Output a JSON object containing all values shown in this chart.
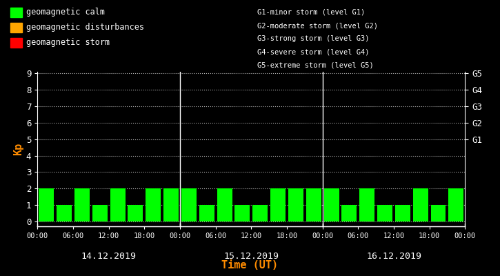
{
  "bg_color": "#000000",
  "bar_color": "#00ff00",
  "text_color": "#ffffff",
  "axis_color": "#ffffff",
  "kp_label_color": "#ff8c00",
  "xlabel_color": "#ff8c00",
  "legend_colors": {
    "calm": "#00ff00",
    "disturbances": "#ffa500",
    "storm": "#ff0000"
  },
  "legend_labels": [
    "geomagnetic calm",
    "geomagnetic disturbances",
    "geomagnetic storm"
  ],
  "g_labels": [
    "G1-minor storm (level G1)",
    "G2-moderate storm (level G2)",
    "G3-strong storm (level G3)",
    "G4-severe storm (level G4)",
    "G5-extreme storm (level G5)"
  ],
  "right_axis_labels": [
    "G1",
    "G2",
    "G3",
    "G4",
    "G5"
  ],
  "right_axis_values": [
    5,
    6,
    7,
    8,
    9
  ],
  "kp_values": [
    2,
    1,
    2,
    1,
    2,
    1,
    2,
    2,
    2,
    1,
    2,
    1,
    1,
    2,
    2,
    2,
    2,
    1,
    2,
    1,
    1,
    2,
    1,
    2
  ],
  "day_labels": [
    "14.12.2019",
    "15.12.2019",
    "16.12.2019"
  ],
  "time_tick_labels": [
    "00:00",
    "06:00",
    "12:00",
    "18:00",
    "00:00",
    "06:00",
    "12:00",
    "18:00",
    "00:00",
    "06:00",
    "12:00",
    "18:00",
    "00:00"
  ],
  "ylim": [
    0,
    9
  ],
  "yticks": [
    0,
    1,
    2,
    3,
    4,
    5,
    6,
    7,
    8,
    9
  ],
  "xlabel": "Time (UT)",
  "ylabel": "Kp",
  "divider_lines": [
    8,
    16
  ],
  "bars_per_day": 8
}
